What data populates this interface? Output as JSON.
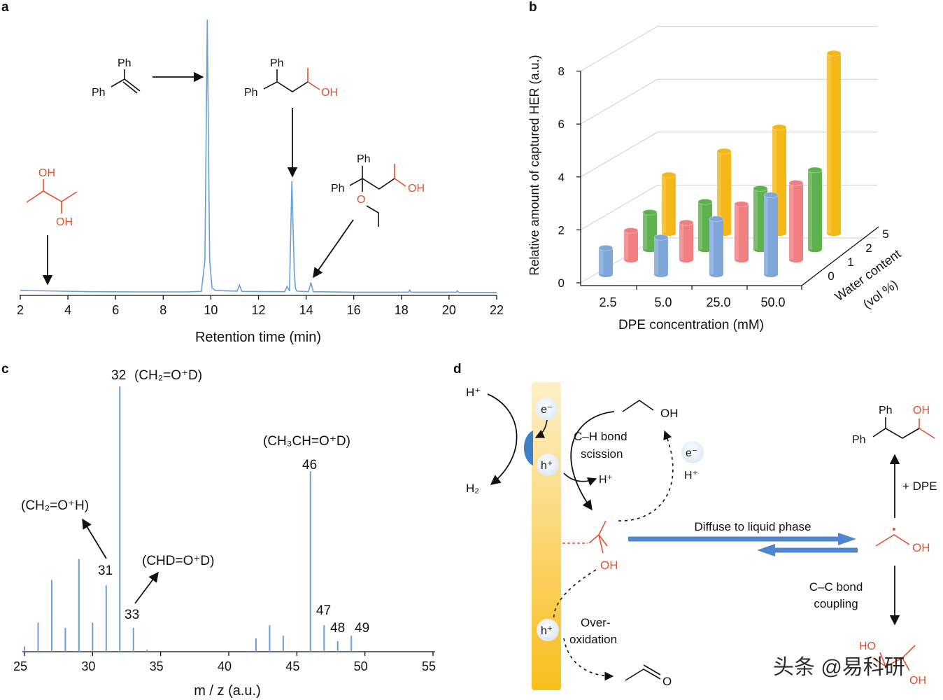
{
  "panels": {
    "a": {
      "label": "a",
      "xlabel": "Retention time (min)",
      "xticks": [
        "2",
        "4",
        "6",
        "8",
        "10",
        "12",
        "14",
        "16",
        "18",
        "20",
        "22"
      ],
      "mol_dpe_ph1": "Ph",
      "mol_dpe_ph2": "Ph",
      "mol_diol_oh1": "OH",
      "mol_diol_oh2": "OH",
      "mol_prod_ph1": "Ph",
      "mol_prod_ph2": "Ph",
      "mol_prod_oh": "OH",
      "mol_ether_ph1": "Ph",
      "mol_ether_ph2": "Ph",
      "mol_ether_oh": "OH",
      "mol_ether_o": "O"
    },
    "b": {
      "label": "b",
      "ylabel": "Relative amount of captured HER (a.u.)",
      "xlabel": "DPE concentration (mM)",
      "zlabel1": "Water content",
      "zlabel2": "(vol %)",
      "yticks": [
        "0",
        "2",
        "4",
        "6",
        "8"
      ],
      "xticks": [
        "2.5",
        "5.0",
        "25.0",
        "50.0"
      ],
      "zticks": [
        "0",
        "1",
        "2",
        "5"
      ]
    },
    "c": {
      "label": "c",
      "xlabel": "m / z (a.u.)",
      "xticks": [
        "25",
        "30",
        "35",
        "40",
        "45",
        "50",
        "55"
      ],
      "ann_32": "32",
      "ann_32_formula": "(CH₂=O⁺D)",
      "ann_46_formula": "(CH₃CH=O⁺D)",
      "ann_46": "46",
      "ann_31_formula": "(CH₂=O⁺H)",
      "ann_31": "31",
      "ann_33_formula": "(CHD=O⁺D)",
      "ann_33": "33",
      "ann_47": "47",
      "ann_48": "48",
      "ann_49": "49"
    },
    "d": {
      "label": "d",
      "h_plus_top": "H⁺",
      "h2": "H₂",
      "e_minus": "e⁻",
      "h_plus_hole": "h⁺",
      "ch_bond": "C–H bond",
      "scission": "scission",
      "oh_ethanol": "OH",
      "e_minus_right": "e⁻",
      "h_plus_mid": "H⁺",
      "h_plus_right": "H⁺",
      "radical_oh_left": "OH",
      "diffuse": "Diffuse to liquid phase",
      "radical_oh_right": "OH",
      "plus_dpe": "+ DPE",
      "prod_ph1": "Ph",
      "prod_ph2": "Ph",
      "prod_oh": "OH",
      "cc_bond": "C–C bond",
      "coupling": "coupling",
      "ho": "HO",
      "oh_diol": "OH",
      "h_plus_hole2": "h⁺",
      "over": "Over-",
      "oxidation": "oxidation",
      "ald_o": "O",
      "watermark": "头条 @易科研"
    }
  },
  "colors": {
    "trace": "#6a9fd4",
    "red": "#e0522e",
    "blue_bar": "#7ea6d8",
    "red_bar": "#ef7f80",
    "green_bar": "#5fb04f",
    "yellow_bar": "#f4b718",
    "arrow_blue": "#4f86cf"
  },
  "chart_data": [
    {
      "panel": "a",
      "type": "line",
      "title": "",
      "xlabel": "Retention time (min)",
      "ylabel": "",
      "xlim": [
        2,
        22
      ],
      "ylim": [
        0,
        100
      ],
      "series": [
        {
          "name": "chromatogram",
          "x": [
            2,
            3,
            5,
            7,
            9,
            9.6,
            9.75,
            9.85,
            9.95,
            10.05,
            10.2,
            11.1,
            11.2,
            11.3,
            13.1,
            13.2,
            13.3,
            13.4,
            13.5,
            13.55,
            13.6,
            14.1,
            14.2,
            14.3,
            16,
            18.3,
            18.35,
            18.4,
            20.3,
            20.35,
            20.4,
            22
          ],
          "y": [
            1.0,
            0.9,
            0.6,
            0.5,
            0.5,
            0.7,
            12,
            100,
            12,
            2.0,
            1.0,
            0.8,
            3.0,
            0.7,
            0.6,
            2.5,
            0.8,
            41,
            8,
            2.0,
            0.8,
            0.6,
            4.0,
            0.6,
            0.4,
            0.4,
            1.2,
            0.4,
            0.4,
            0.9,
            0.3,
            0.3
          ]
        }
      ]
    },
    {
      "panel": "b",
      "type": "bar",
      "title": "",
      "xlabel": "DPE concentration (mM)",
      "ylabel": "Relative amount of captured HER (a.u.)",
      "zlabel": "Water content (vol %)",
      "ylim": [
        0,
        8
      ],
      "categories": [
        "2.5",
        "5.0",
        "25.0",
        "50.0"
      ],
      "series": [
        {
          "name": "0",
          "values": [
            1.0,
            1.4,
            2.1,
            3.0
          ]
        },
        {
          "name": "1",
          "values": [
            1.1,
            1.4,
            2.1,
            2.9
          ]
        },
        {
          "name": "2",
          "values": [
            1.4,
            1.8,
            2.3,
            3.0
          ]
        },
        {
          "name": "5",
          "values": [
            2.2,
            3.1,
            4.0,
            6.8
          ]
        }
      ]
    },
    {
      "panel": "c",
      "type": "bar",
      "title": "",
      "xlabel": "m / z (a.u.)",
      "ylabel": "",
      "xlim": [
        25,
        55
      ],
      "ylim": [
        0,
        100
      ],
      "x": [
        25,
        26,
        27,
        28,
        29,
        30,
        31,
        32,
        33,
        34,
        42,
        43,
        44,
        46,
        47,
        48,
        49
      ],
      "values": [
        2,
        11,
        27,
        9,
        35,
        11,
        25,
        100,
        9,
        0.8,
        5,
        10,
        6,
        68,
        10,
        4,
        6
      ]
    }
  ]
}
